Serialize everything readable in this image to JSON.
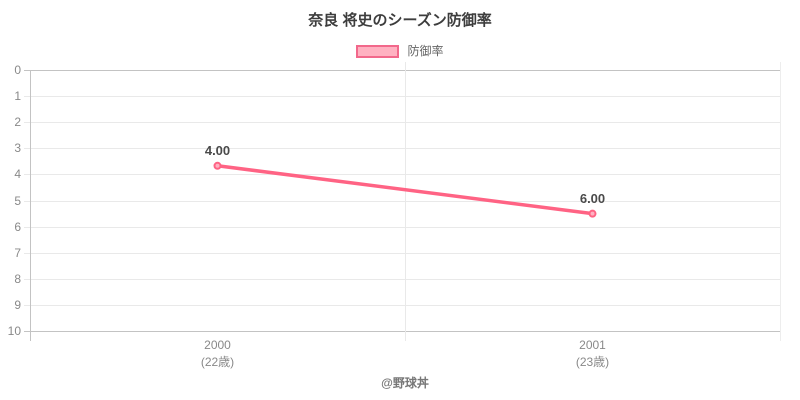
{
  "title": "奈良 将史のシーズン防御率",
  "legend": {
    "label": "防御率"
  },
  "footer": "@野球丼",
  "colors": {
    "line": "#ff6384",
    "point_fill": "#ffb1c1",
    "swatch_fill": "#ffb1c1",
    "swatch_border": "#f2688b",
    "grid": "#e9e9e9",
    "grid_strong": "#c3c3c3",
    "grid_faint": "#ededed",
    "axis_text": "#898989",
    "title_text": "#3d3d3d",
    "legend_text": "#666666",
    "point_label_text": "#4a4a4a",
    "footer_text": "#777777"
  },
  "chart_data": {
    "type": "line",
    "title": "奈良 将史のシーズン防御率",
    "categories": [
      "2000",
      "2001"
    ],
    "category_sublabels": [
      "(22歳)",
      "(23歳)"
    ],
    "series": [
      {
        "name": "防御率",
        "values": [
          4.0,
          6.0
        ]
      }
    ],
    "point_labels": [
      "4.00",
      "6.00"
    ],
    "y_ticks": [
      0,
      1,
      2,
      3,
      4,
      5,
      6,
      7,
      8,
      9,
      10
    ],
    "ylim": [
      0,
      10
    ],
    "y_reversed": true,
    "grid": true,
    "legend_position": "top",
    "plot_scale_max": 10.9,
    "footer": "@野球丼"
  }
}
